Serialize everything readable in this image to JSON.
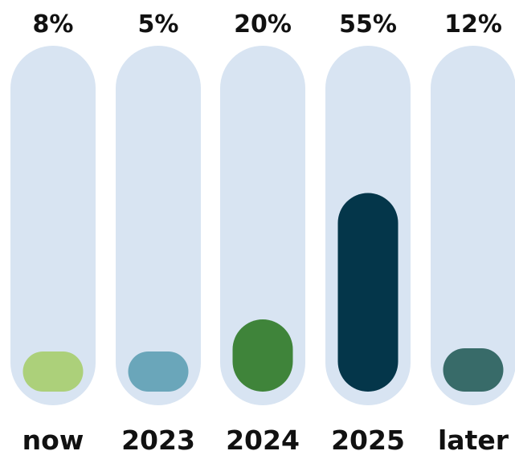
{
  "chart_data": {
    "type": "bar",
    "categories": [
      "now",
      "2023",
      "2024",
      "2025",
      "later"
    ],
    "values": [
      8,
      5,
      20,
      55,
      12
    ],
    "value_labels": [
      "8%",
      "5%",
      "20%",
      "55%",
      "12%"
    ],
    "ylim": [
      0,
      100
    ],
    "colors": [
      "#acd07a",
      "#6aa6ba",
      "#3f843a",
      "#04364a",
      "#386b69"
    ],
    "track_color": "#d8e4f2",
    "grid": false,
    "legend": "none"
  }
}
